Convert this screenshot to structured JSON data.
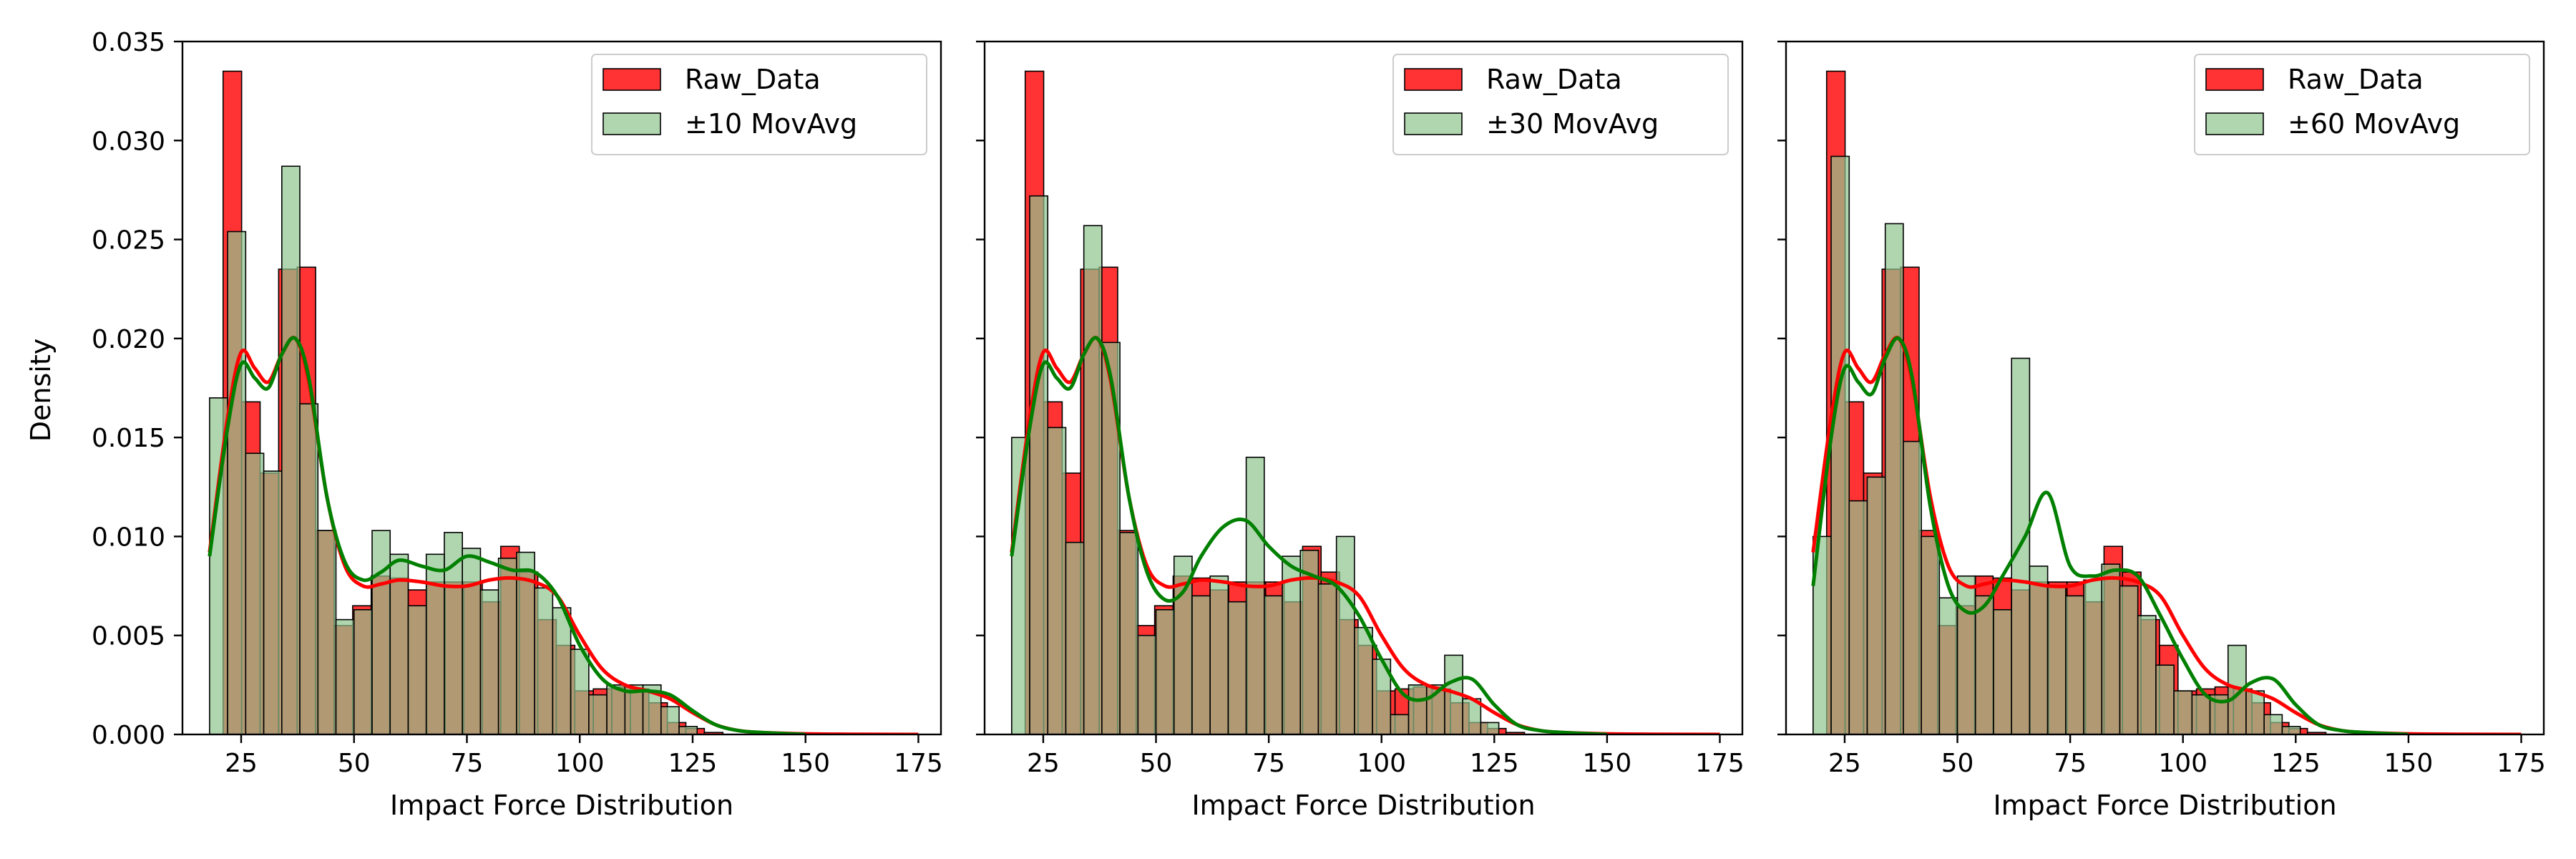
{
  "figure": {
    "ylabel": "Density"
  },
  "colors": {
    "raw_fill": "#ff0000",
    "raw_fill_opacity": 0.8,
    "mov_fill": "#8fc48f",
    "mov_fill_opacity": 0.7,
    "raw_kde": "#ff0000",
    "mov_kde": "#008000",
    "bar_edge": "#000000",
    "overlap_hint": "#a54a2a"
  },
  "chart_data": [
    {
      "type": "histogram",
      "title": "",
      "xlabel": "Impact Force Distribution",
      "ylabel": "Density",
      "xlim": [
        12,
        180
      ],
      "ylim": [
        0,
        0.035
      ],
      "xticks": [
        25,
        50,
        75,
        100,
        125,
        150,
        175
      ],
      "yticks": [
        0.0,
        0.005,
        0.01,
        0.015,
        0.02,
        0.025,
        0.03,
        0.035
      ],
      "legend": [
        "Raw_Data",
        "±10 MovAvg"
      ],
      "legend_position": "upper right",
      "series": [
        {
          "name": "Raw_Data",
          "bin_edges": [
            21,
            25.1,
            29.2,
            33.3,
            37.4,
            41.5,
            45.6,
            49.7,
            53.8,
            57.9,
            62,
            66.1,
            70.2,
            74.3,
            78.4,
            82.5,
            86.6,
            90.7,
            94.8,
            98.9,
            103,
            107.1,
            111.2,
            115.3,
            119.4,
            123.5,
            127.6,
            131.7
          ],
          "densities": [
            0.0335,
            0.0168,
            0.0132,
            0.0235,
            0.0236,
            0.0103,
            0.0055,
            0.0065,
            0.008,
            0.0079,
            0.0073,
            0.0077,
            0.0077,
            0.0077,
            0.0067,
            0.0095,
            0.0082,
            0.0058,
            0.0045,
            0.0022,
            0.0023,
            0.0024,
            0.0023,
            0.0016,
            0.0006,
            0.0003,
            0.0001
          ],
          "kde_x": [
            18,
            22,
            25,
            28,
            31,
            34,
            37,
            40,
            44,
            48,
            52,
            56,
            60,
            65,
            70,
            75,
            80,
            85,
            90,
            95,
            100,
            105,
            110,
            115,
            120,
            125,
            130,
            135,
            140,
            150,
            160,
            175
          ],
          "kde_y": [
            0.0092,
            0.016,
            0.0193,
            0.0185,
            0.0178,
            0.0192,
            0.02,
            0.0178,
            0.012,
            0.0085,
            0.0075,
            0.0076,
            0.0078,
            0.0077,
            0.0075,
            0.0075,
            0.0078,
            0.0079,
            0.0077,
            0.007,
            0.005,
            0.0033,
            0.0025,
            0.0022,
            0.0018,
            0.0011,
            0.0005,
            0.0002,
            0.0001,
            3e-05,
            1e-05,
            0.0
          ]
        },
        {
          "name": "±10 MovAvg",
          "bin_edges": [
            18,
            22,
            26,
            30,
            34,
            38,
            42,
            46,
            50,
            54,
            58,
            62,
            66,
            70,
            74,
            78,
            82,
            86,
            90,
            94,
            98,
            102,
            106,
            110,
            114,
            118,
            122,
            126
          ],
          "densities": [
            0.017,
            0.0254,
            0.0142,
            0.0133,
            0.0287,
            0.0167,
            0.0103,
            0.0058,
            0.0063,
            0.0103,
            0.0091,
            0.0065,
            0.0091,
            0.0102,
            0.0094,
            0.0073,
            0.0089,
            0.0092,
            0.0074,
            0.0064,
            0.0043,
            0.002,
            0.0025,
            0.0025,
            0.0025,
            0.0014,
            0.0004
          ],
          "kde_x": [
            18,
            22,
            25,
            28,
            31,
            34,
            37,
            40,
            44,
            48,
            52,
            56,
            60,
            65,
            70,
            75,
            80,
            85,
            90,
            95,
            100,
            105,
            110,
            115,
            120,
            125,
            130,
            135,
            140,
            150
          ],
          "kde_y": [
            0.009,
            0.0155,
            0.0187,
            0.018,
            0.0175,
            0.0192,
            0.02,
            0.018,
            0.012,
            0.0087,
            0.0078,
            0.0082,
            0.0088,
            0.0085,
            0.0083,
            0.009,
            0.0087,
            0.0083,
            0.0082,
            0.007,
            0.0045,
            0.0028,
            0.0022,
            0.0022,
            0.002,
            0.0012,
            0.0005,
            0.0002,
            0.0001,
            0.0
          ]
        }
      ]
    },
    {
      "type": "histogram",
      "title": "",
      "xlabel": "Impact Force Distribution",
      "ylabel": "",
      "xlim": [
        12,
        180
      ],
      "ylim": [
        0,
        0.035
      ],
      "xticks": [
        25,
        50,
        75,
        100,
        125,
        150,
        175
      ],
      "yticks": [
        0.0,
        0.005,
        0.01,
        0.015,
        0.02,
        0.025,
        0.03,
        0.035
      ],
      "legend": [
        "Raw_Data",
        "±30 MovAvg"
      ],
      "legend_position": "upper right",
      "series": [
        {
          "name": "Raw_Data",
          "bin_edges": [
            21,
            25.1,
            29.2,
            33.3,
            37.4,
            41.5,
            45.6,
            49.7,
            53.8,
            57.9,
            62,
            66.1,
            70.2,
            74.3,
            78.4,
            82.5,
            86.6,
            90.7,
            94.8,
            98.9,
            103,
            107.1,
            111.2,
            115.3,
            119.4,
            123.5,
            127.6,
            131.7
          ],
          "densities": [
            0.0335,
            0.0168,
            0.0132,
            0.0235,
            0.0236,
            0.0103,
            0.0055,
            0.0065,
            0.008,
            0.0079,
            0.0073,
            0.0077,
            0.0077,
            0.0077,
            0.0067,
            0.0095,
            0.0082,
            0.0058,
            0.0045,
            0.0022,
            0.0023,
            0.0024,
            0.0023,
            0.0016,
            0.0006,
            0.0003,
            0.0001
          ],
          "kde_x": [
            18,
            22,
            25,
            28,
            31,
            34,
            37,
            40,
            44,
            48,
            52,
            56,
            60,
            65,
            70,
            75,
            80,
            85,
            90,
            95,
            100,
            105,
            110,
            115,
            120,
            125,
            130,
            135,
            140,
            150,
            160,
            175
          ],
          "kde_y": [
            0.0092,
            0.016,
            0.0193,
            0.0185,
            0.0178,
            0.0192,
            0.02,
            0.0178,
            0.012,
            0.0085,
            0.0075,
            0.0076,
            0.0078,
            0.0077,
            0.0075,
            0.0075,
            0.0078,
            0.0079,
            0.0077,
            0.007,
            0.005,
            0.0033,
            0.0025,
            0.0022,
            0.0018,
            0.0011,
            0.0005,
            0.0002,
            0.0001,
            3e-05,
            1e-05,
            0.0
          ]
        },
        {
          "name": "±30 MovAvg",
          "bin_edges": [
            18,
            22,
            26,
            30,
            34,
            38,
            42,
            46,
            50,
            54,
            58,
            62,
            66,
            70,
            74,
            78,
            82,
            86,
            90,
            94,
            98,
            102,
            106,
            110,
            114,
            118,
            122,
            126
          ],
          "densities": [
            0.015,
            0.0272,
            0.0155,
            0.0097,
            0.0257,
            0.0198,
            0.0102,
            0.005,
            0.0063,
            0.009,
            0.007,
            0.008,
            0.0067,
            0.014,
            0.007,
            0.009,
            0.0093,
            0.0076,
            0.01,
            0.0054,
            0.0038,
            0.001,
            0.0025,
            0.0025,
            0.004,
            0.0018,
            0.0006
          ],
          "kde_x": [
            18,
            22,
            25,
            28,
            31,
            34,
            37,
            40,
            44,
            48,
            52,
            56,
            60,
            65,
            70,
            75,
            80,
            85,
            90,
            95,
            100,
            105,
            110,
            115,
            120,
            125,
            130,
            135,
            140,
            150
          ],
          "kde_y": [
            0.009,
            0.0155,
            0.0187,
            0.018,
            0.0175,
            0.0192,
            0.02,
            0.018,
            0.012,
            0.0082,
            0.0068,
            0.0072,
            0.009,
            0.0105,
            0.0108,
            0.0095,
            0.0085,
            0.008,
            0.0075,
            0.006,
            0.0038,
            0.002,
            0.0018,
            0.0026,
            0.0028,
            0.0015,
            0.0005,
            0.0002,
            0.0001,
            0.0
          ]
        }
      ]
    },
    {
      "type": "histogram",
      "title": "",
      "xlabel": "Impact Force Distribution",
      "ylabel": "",
      "xlim": [
        12,
        180
      ],
      "ylim": [
        0,
        0.035
      ],
      "xticks": [
        25,
        50,
        75,
        100,
        125,
        150,
        175
      ],
      "yticks": [
        0.0,
        0.005,
        0.01,
        0.015,
        0.02,
        0.025,
        0.03,
        0.035
      ],
      "legend": [
        "Raw_Data",
        "±60 MovAvg"
      ],
      "legend_position": "upper right",
      "series": [
        {
          "name": "Raw_Data",
          "bin_edges": [
            21,
            25.1,
            29.2,
            33.3,
            37.4,
            41.5,
            45.6,
            49.7,
            53.8,
            57.9,
            62,
            66.1,
            70.2,
            74.3,
            78.4,
            82.5,
            86.6,
            90.7,
            94.8,
            98.9,
            103,
            107.1,
            111.2,
            115.3,
            119.4,
            123.5,
            127.6,
            131.7
          ],
          "densities": [
            0.0335,
            0.0168,
            0.0132,
            0.0235,
            0.0236,
            0.0103,
            0.0055,
            0.0065,
            0.008,
            0.0079,
            0.0073,
            0.0077,
            0.0077,
            0.0077,
            0.0067,
            0.0095,
            0.0082,
            0.0058,
            0.0045,
            0.0022,
            0.0023,
            0.0024,
            0.0023,
            0.0016,
            0.0006,
            0.0003,
            0.0001
          ],
          "kde_x": [
            18,
            22,
            25,
            28,
            31,
            34,
            37,
            40,
            44,
            48,
            52,
            56,
            60,
            65,
            70,
            75,
            80,
            85,
            90,
            95,
            100,
            105,
            110,
            115,
            120,
            125,
            130,
            135,
            140,
            150,
            160,
            175
          ],
          "kde_y": [
            0.0092,
            0.016,
            0.0193,
            0.0185,
            0.0178,
            0.0192,
            0.02,
            0.0178,
            0.012,
            0.0085,
            0.0075,
            0.0076,
            0.0078,
            0.0077,
            0.0075,
            0.0075,
            0.0078,
            0.0079,
            0.0077,
            0.007,
            0.005,
            0.0033,
            0.0025,
            0.0022,
            0.0018,
            0.0011,
            0.0005,
            0.0002,
            0.0001,
            3e-05,
            1e-05,
            0.0
          ]
        },
        {
          "name": "±60 MovAvg",
          "bin_edges": [
            18,
            22,
            26,
            30,
            34,
            38,
            42,
            46,
            50,
            54,
            58,
            62,
            66,
            70,
            74,
            78,
            82,
            86,
            90,
            94,
            98,
            102,
            106,
            110,
            114,
            118,
            122,
            126
          ],
          "densities": [
            0.01,
            0.0292,
            0.0118,
            0.013,
            0.0258,
            0.0148,
            0.01,
            0.0069,
            0.008,
            0.007,
            0.0063,
            0.019,
            0.0085,
            0.0075,
            0.007,
            0.0078,
            0.0086,
            0.0075,
            0.006,
            0.0035,
            0.0022,
            0.002,
            0.002,
            0.0045,
            0.0022,
            0.001,
            0.0004
          ],
          "kde_x": [
            18,
            22,
            25,
            28,
            31,
            34,
            37,
            40,
            44,
            48,
            52,
            56,
            60,
            65,
            70,
            75,
            80,
            85,
            90,
            95,
            100,
            105,
            110,
            115,
            120,
            125,
            130,
            135,
            140,
            150
          ],
          "kde_y": [
            0.0075,
            0.015,
            0.0185,
            0.0178,
            0.0172,
            0.019,
            0.02,
            0.018,
            0.0115,
            0.0075,
            0.0062,
            0.0065,
            0.008,
            0.01,
            0.0122,
            0.0085,
            0.008,
            0.0083,
            0.008,
            0.006,
            0.0038,
            0.002,
            0.0017,
            0.0026,
            0.0028,
            0.0015,
            0.0005,
            0.0002,
            0.0001,
            0.0
          ]
        }
      ]
    }
  ]
}
